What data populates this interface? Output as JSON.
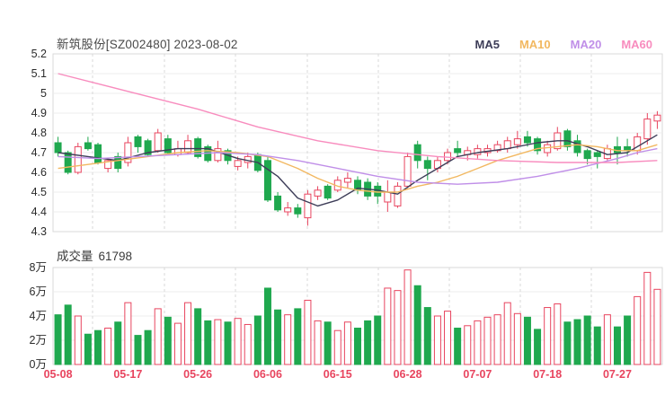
{
  "header": {
    "title": "新筑股份[SZ002480] 2023-08-02",
    "legend": [
      {
        "label": "MA5",
        "color": "#3d3d58"
      },
      {
        "label": "MA10",
        "color": "#f2b861"
      },
      {
        "label": "MA20",
        "color": "#c08fe8"
      },
      {
        "label": "MA60",
        "color": "#f88cbe"
      }
    ]
  },
  "volume_header": {
    "label": "成交量",
    "value": "61798"
  },
  "chart_data": {
    "type": "candlestick+volume",
    "title": "新筑股份[SZ002480] 2023-08-02",
    "colors": {
      "up": "#e8455f",
      "down": "#1fa84e",
      "ma5": "#3d3d58",
      "ma10": "#f2b861",
      "ma20": "#c08fe8",
      "ma60": "#f88cbe",
      "grid": "#ececec",
      "grid_dash": "#d8d8d8",
      "border": "#d9d9d9",
      "axis_text": "#2b2b2b",
      "date_text": "#e8455f"
    },
    "price_axis": {
      "min": 4.3,
      "max": 5.2,
      "ticks": [
        "5.2",
        "5.1",
        "5",
        "4.9",
        "4.8",
        "4.7",
        "4.6",
        "4.5",
        "4.4",
        "4.3"
      ]
    },
    "volume_axis": {
      "min": 0,
      "max": 8,
      "unit": "万",
      "ticks": [
        "8万",
        "6万",
        "4万",
        "2万",
        "0万"
      ]
    },
    "x_axis": {
      "labels": [
        "05-08",
        "05-17",
        "05-26",
        "06-06",
        "06-15",
        "06-28",
        "07-07",
        "07-18",
        "07-27"
      ],
      "indices": [
        0,
        7,
        14,
        21,
        28,
        35,
        42,
        49,
        56
      ]
    },
    "candles": [
      {
        "d": "05-08",
        "o": 4.75,
        "h": 4.78,
        "l": 4.68,
        "c": 4.7,
        "v": 4.1,
        "dir": "down"
      },
      {
        "d": "05-09",
        "o": 4.7,
        "h": 4.71,
        "l": 4.59,
        "c": 4.6,
        "v": 4.9,
        "dir": "down"
      },
      {
        "d": "05-10",
        "o": 4.6,
        "h": 4.75,
        "l": 4.59,
        "c": 4.73,
        "v": 4.0,
        "dir": "up"
      },
      {
        "d": "05-11",
        "o": 4.75,
        "h": 4.78,
        "l": 4.71,
        "c": 4.72,
        "v": 2.5,
        "dir": "down"
      },
      {
        "d": "05-12",
        "o": 4.74,
        "h": 4.75,
        "l": 4.64,
        "c": 4.65,
        "v": 2.8,
        "dir": "down"
      },
      {
        "d": "05-15",
        "o": 4.62,
        "h": 4.67,
        "l": 4.6,
        "c": 4.66,
        "v": 3.0,
        "dir": "up"
      },
      {
        "d": "05-16",
        "o": 4.68,
        "h": 4.7,
        "l": 4.6,
        "c": 4.62,
        "v": 3.5,
        "dir": "down"
      },
      {
        "d": "05-17",
        "o": 4.65,
        "h": 4.78,
        "l": 4.63,
        "c": 4.75,
        "v": 5.1,
        "dir": "up"
      },
      {
        "d": "05-18",
        "o": 4.78,
        "h": 4.79,
        "l": 4.7,
        "c": 4.73,
        "v": 2.4,
        "dir": "down"
      },
      {
        "d": "05-19",
        "o": 4.76,
        "h": 4.77,
        "l": 4.68,
        "c": 4.69,
        "v": 2.8,
        "dir": "down"
      },
      {
        "d": "05-22",
        "o": 4.71,
        "h": 4.82,
        "l": 4.7,
        "c": 4.8,
        "v": 4.6,
        "dir": "up"
      },
      {
        "d": "05-23",
        "o": 4.77,
        "h": 4.79,
        "l": 4.69,
        "c": 4.7,
        "v": 3.9,
        "dir": "down"
      },
      {
        "d": "05-24",
        "o": 4.69,
        "h": 4.76,
        "l": 4.68,
        "c": 4.72,
        "v": 3.4,
        "dir": "up"
      },
      {
        "d": "05-25",
        "o": 4.7,
        "h": 4.79,
        "l": 4.69,
        "c": 4.76,
        "v": 5.1,
        "dir": "up"
      },
      {
        "d": "05-26",
        "o": 4.77,
        "h": 4.78,
        "l": 4.67,
        "c": 4.68,
        "v": 4.6,
        "dir": "down"
      },
      {
        "d": "05-29",
        "o": 4.73,
        "h": 4.74,
        "l": 4.65,
        "c": 4.66,
        "v": 3.6,
        "dir": "down"
      },
      {
        "d": "05-30",
        "o": 4.66,
        "h": 4.76,
        "l": 4.65,
        "c": 4.72,
        "v": 3.7,
        "dir": "up"
      },
      {
        "d": "05-31",
        "o": 4.71,
        "h": 4.72,
        "l": 4.64,
        "c": 4.66,
        "v": 3.5,
        "dir": "down"
      },
      {
        "d": "06-01",
        "o": 4.63,
        "h": 4.68,
        "l": 4.61,
        "c": 4.66,
        "v": 3.8,
        "dir": "up"
      },
      {
        "d": "06-02",
        "o": 4.65,
        "h": 4.7,
        "l": 4.62,
        "c": 4.68,
        "v": 3.3,
        "dir": "up"
      },
      {
        "d": "06-05",
        "o": 4.69,
        "h": 4.7,
        "l": 4.6,
        "c": 4.61,
        "v": 4.0,
        "dir": "down"
      },
      {
        "d": "06-06",
        "o": 4.66,
        "h": 4.68,
        "l": 4.45,
        "c": 4.46,
        "v": 6.3,
        "dir": "down"
      },
      {
        "d": "06-07",
        "o": 4.48,
        "h": 4.5,
        "l": 4.4,
        "c": 4.41,
        "v": 4.5,
        "dir": "down"
      },
      {
        "d": "06-08",
        "o": 4.4,
        "h": 4.45,
        "l": 4.38,
        "c": 4.42,
        "v": 4.1,
        "dir": "up"
      },
      {
        "d": "06-09",
        "o": 4.42,
        "h": 4.44,
        "l": 4.37,
        "c": 4.39,
        "v": 4.6,
        "dir": "down"
      },
      {
        "d": "06-12",
        "o": 4.37,
        "h": 4.51,
        "l": 4.33,
        "c": 4.49,
        "v": 5.3,
        "dir": "up"
      },
      {
        "d": "06-13",
        "o": 4.48,
        "h": 4.53,
        "l": 4.46,
        "c": 4.51,
        "v": 3.6,
        "dir": "up"
      },
      {
        "d": "06-14",
        "o": 4.53,
        "h": 4.54,
        "l": 4.46,
        "c": 4.47,
        "v": 3.5,
        "dir": "down"
      },
      {
        "d": "06-15",
        "o": 4.51,
        "h": 4.58,
        "l": 4.5,
        "c": 4.56,
        "v": 2.8,
        "dir": "up"
      },
      {
        "d": "06-16",
        "o": 4.55,
        "h": 4.6,
        "l": 4.52,
        "c": 4.57,
        "v": 3.5,
        "dir": "up"
      },
      {
        "d": "06-19",
        "o": 4.56,
        "h": 4.58,
        "l": 4.49,
        "c": 4.51,
        "v": 3.0,
        "dir": "down"
      },
      {
        "d": "06-20",
        "o": 4.55,
        "h": 4.57,
        "l": 4.46,
        "c": 4.48,
        "v": 3.6,
        "dir": "down"
      },
      {
        "d": "06-21",
        "o": 4.53,
        "h": 4.55,
        "l": 4.44,
        "c": 4.48,
        "v": 4.0,
        "dir": "down"
      },
      {
        "d": "06-26",
        "o": 4.45,
        "h": 4.56,
        "l": 4.4,
        "c": 4.5,
        "v": 6.3,
        "dir": "up"
      },
      {
        "d": "06-27",
        "o": 4.43,
        "h": 4.55,
        "l": 4.42,
        "c": 4.53,
        "v": 6.1,
        "dir": "up"
      },
      {
        "d": "06-28",
        "o": 4.53,
        "h": 4.7,
        "l": 4.52,
        "c": 4.68,
        "v": 7.8,
        "dir": "up"
      },
      {
        "d": "06-29",
        "o": 4.74,
        "h": 4.76,
        "l": 4.62,
        "c": 4.66,
        "v": 6.5,
        "dir": "down"
      },
      {
        "d": "06-30",
        "o": 4.66,
        "h": 4.68,
        "l": 4.56,
        "c": 4.62,
        "v": 4.7,
        "dir": "down"
      },
      {
        "d": "07-03",
        "o": 4.62,
        "h": 4.68,
        "l": 4.6,
        "c": 4.66,
        "v": 4.0,
        "dir": "up"
      },
      {
        "d": "07-04",
        "o": 4.66,
        "h": 4.72,
        "l": 4.64,
        "c": 4.7,
        "v": 4.4,
        "dir": "up"
      },
      {
        "d": "07-05",
        "o": 4.72,
        "h": 4.76,
        "l": 4.68,
        "c": 4.7,
        "v": 3.0,
        "dir": "down"
      },
      {
        "d": "07-06",
        "o": 4.69,
        "h": 4.73,
        "l": 4.66,
        "c": 4.71,
        "v": 3.2,
        "dir": "up"
      },
      {
        "d": "07-07",
        "o": 4.69,
        "h": 4.74,
        "l": 4.67,
        "c": 4.72,
        "v": 3.6,
        "dir": "up"
      },
      {
        "d": "07-10",
        "o": 4.7,
        "h": 4.74,
        "l": 4.68,
        "c": 4.72,
        "v": 3.9,
        "dir": "up"
      },
      {
        "d": "07-11",
        "o": 4.71,
        "h": 4.76,
        "l": 4.7,
        "c": 4.74,
        "v": 4.1,
        "dir": "up"
      },
      {
        "d": "07-12",
        "o": 4.72,
        "h": 4.78,
        "l": 4.7,
        "c": 4.76,
        "v": 5.1,
        "dir": "up"
      },
      {
        "d": "07-13",
        "o": 4.74,
        "h": 4.81,
        "l": 4.72,
        "c": 4.77,
        "v": 4.2,
        "dir": "up"
      },
      {
        "d": "07-14",
        "o": 4.78,
        "h": 4.81,
        "l": 4.73,
        "c": 4.75,
        "v": 3.9,
        "dir": "down"
      },
      {
        "d": "07-17",
        "o": 4.77,
        "h": 4.78,
        "l": 4.69,
        "c": 4.71,
        "v": 2.9,
        "dir": "down"
      },
      {
        "d": "07-18",
        "o": 4.7,
        "h": 4.76,
        "l": 4.68,
        "c": 4.74,
        "v": 4.7,
        "dir": "up"
      },
      {
        "d": "07-19",
        "o": 4.72,
        "h": 4.83,
        "l": 4.71,
        "c": 4.8,
        "v": 5.0,
        "dir": "up"
      },
      {
        "d": "07-20",
        "o": 4.81,
        "h": 4.82,
        "l": 4.71,
        "c": 4.73,
        "v": 3.5,
        "dir": "down"
      },
      {
        "d": "07-21",
        "o": 4.76,
        "h": 4.79,
        "l": 4.68,
        "c": 4.7,
        "v": 3.7,
        "dir": "down"
      },
      {
        "d": "07-24",
        "o": 4.71,
        "h": 4.72,
        "l": 4.64,
        "c": 4.67,
        "v": 4.0,
        "dir": "down"
      },
      {
        "d": "07-25",
        "o": 4.7,
        "h": 4.71,
        "l": 4.62,
        "c": 4.68,
        "v": 3.1,
        "dir": "down"
      },
      {
        "d": "07-26",
        "o": 4.67,
        "h": 4.74,
        "l": 4.66,
        "c": 4.72,
        "v": 4.1,
        "dir": "up"
      },
      {
        "d": "07-27",
        "o": 4.73,
        "h": 4.78,
        "l": 4.64,
        "c": 4.7,
        "v": 3.1,
        "dir": "down"
      },
      {
        "d": "07-28",
        "o": 4.73,
        "h": 4.77,
        "l": 4.68,
        "c": 4.71,
        "v": 4.0,
        "dir": "down"
      },
      {
        "d": "07-31",
        "o": 4.71,
        "h": 4.8,
        "l": 4.69,
        "c": 4.78,
        "v": 5.6,
        "dir": "up"
      },
      {
        "d": "08-01",
        "o": 4.77,
        "h": 4.9,
        "l": 4.74,
        "c": 4.87,
        "v": 7.6,
        "dir": "up"
      },
      {
        "d": "08-02",
        "o": 4.86,
        "h": 4.91,
        "l": 4.82,
        "c": 4.89,
        "v": 6.2,
        "dir": "up"
      }
    ],
    "ma_lines": [
      {
        "name": "MA5",
        "color": "#3d3d58",
        "points": [
          [
            0,
            4.7
          ],
          [
            3,
            4.68
          ],
          [
            6,
            4.66
          ],
          [
            9,
            4.7
          ],
          [
            12,
            4.72
          ],
          [
            15,
            4.72
          ],
          [
            18,
            4.67
          ],
          [
            20,
            4.65
          ],
          [
            22,
            4.58
          ],
          [
            24,
            4.47
          ],
          [
            26,
            4.43
          ],
          [
            28,
            4.46
          ],
          [
            30,
            4.52
          ],
          [
            32,
            4.51
          ],
          [
            34,
            4.49
          ],
          [
            36,
            4.56
          ],
          [
            38,
            4.62
          ],
          [
            40,
            4.68
          ],
          [
            42,
            4.7
          ],
          [
            45,
            4.72
          ],
          [
            48,
            4.75
          ],
          [
            50,
            4.76
          ],
          [
            51,
            4.76
          ],
          [
            53,
            4.73
          ],
          [
            55,
            4.69
          ],
          [
            57,
            4.7
          ],
          [
            59,
            4.76
          ],
          [
            60,
            4.79
          ]
        ]
      },
      {
        "name": "MA10",
        "color": "#f2b861",
        "points": [
          [
            0,
            4.62
          ],
          [
            3,
            4.64
          ],
          [
            6,
            4.66
          ],
          [
            9,
            4.68
          ],
          [
            12,
            4.7
          ],
          [
            15,
            4.71
          ],
          [
            18,
            4.7
          ],
          [
            21,
            4.68
          ],
          [
            24,
            4.62
          ],
          [
            26,
            4.57
          ],
          [
            28,
            4.53
          ],
          [
            30,
            4.51
          ],
          [
            32,
            4.5
          ],
          [
            34,
            4.5
          ],
          [
            36,
            4.53
          ],
          [
            38,
            4.55
          ],
          [
            40,
            4.58
          ],
          [
            42,
            4.62
          ],
          [
            44,
            4.66
          ],
          [
            46,
            4.69
          ],
          [
            48,
            4.72
          ],
          [
            50,
            4.73
          ],
          [
            52,
            4.74
          ],
          [
            54,
            4.73
          ],
          [
            56,
            4.71
          ],
          [
            58,
            4.71
          ],
          [
            60,
            4.74
          ]
        ]
      },
      {
        "name": "MA20",
        "color": "#c08fe8",
        "points": [
          [
            0,
            4.68
          ],
          [
            4,
            4.67
          ],
          [
            8,
            4.68
          ],
          [
            12,
            4.69
          ],
          [
            16,
            4.7
          ],
          [
            20,
            4.69
          ],
          [
            24,
            4.66
          ],
          [
            28,
            4.62
          ],
          [
            32,
            4.58
          ],
          [
            36,
            4.55
          ],
          [
            40,
            4.54
          ],
          [
            44,
            4.55
          ],
          [
            48,
            4.58
          ],
          [
            52,
            4.62
          ],
          [
            56,
            4.67
          ],
          [
            58,
            4.7
          ],
          [
            60,
            4.72
          ]
        ]
      },
      {
        "name": "MA60",
        "color": "#f88cbe",
        "points": [
          [
            0,
            5.1
          ],
          [
            7,
            5.01
          ],
          [
            14,
            4.92
          ],
          [
            20,
            4.83
          ],
          [
            26,
            4.76
          ],
          [
            32,
            4.71
          ],
          [
            38,
            4.68
          ],
          [
            44,
            4.66
          ],
          [
            50,
            4.65
          ],
          [
            56,
            4.65
          ],
          [
            60,
            4.66
          ]
        ]
      }
    ]
  }
}
